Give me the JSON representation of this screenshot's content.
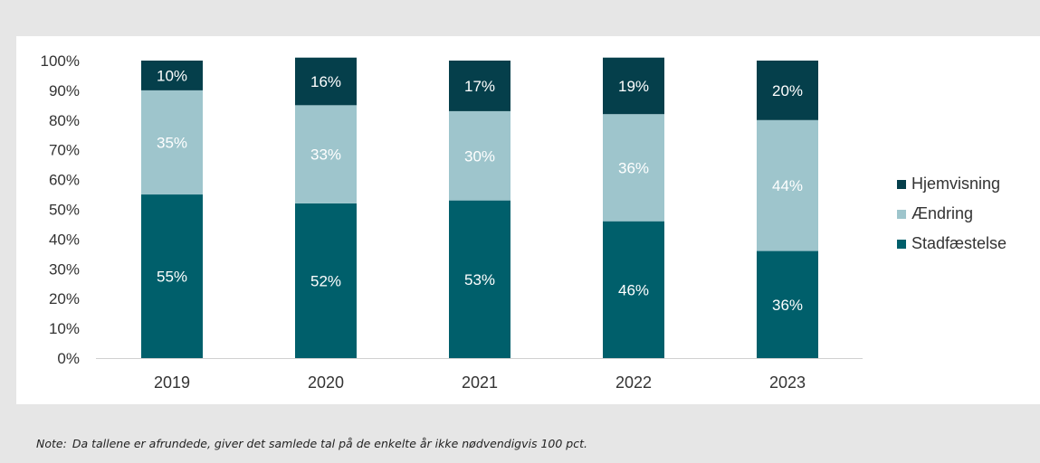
{
  "chart_data": {
    "type": "bar",
    "stacked": true,
    "categories": [
      "2019",
      "2020",
      "2021",
      "2022",
      "2023"
    ],
    "series": [
      {
        "name": "Stadfæstelse",
        "values": [
          55,
          52,
          53,
          46,
          36
        ],
        "color": "#005f6b"
      },
      {
        "name": "Ændring",
        "values": [
          35,
          33,
          30,
          36,
          44
        ],
        "color": "#9ec5cc"
      },
      {
        "name": "Hjemvisning",
        "values": [
          10,
          16,
          17,
          19,
          20
        ],
        "color": "#053f4b"
      }
    ],
    "data_labels": [
      [
        "55%",
        "52%",
        "53%",
        "46%",
        "36%"
      ],
      [
        "35%",
        "33%",
        "30%",
        "36%",
        "44%"
      ],
      [
        "10%",
        "16%",
        "17%",
        "19%",
        "20%"
      ]
    ],
    "yticks": [
      "0%",
      "10%",
      "20%",
      "30%",
      "40%",
      "50%",
      "60%",
      "70%",
      "80%",
      "90%",
      "100%"
    ],
    "ylim": [
      0,
      100
    ],
    "legend_position": "right",
    "legend_order": [
      "Hjemvisning",
      "Ændring",
      "Stadfæstelse"
    ],
    "grid": false
  },
  "note": {
    "label": "Note:",
    "text": "Da tallene er afrundede, giver det samlede tal på de enkelte år ikke nødvendigvis 100 pct."
  }
}
